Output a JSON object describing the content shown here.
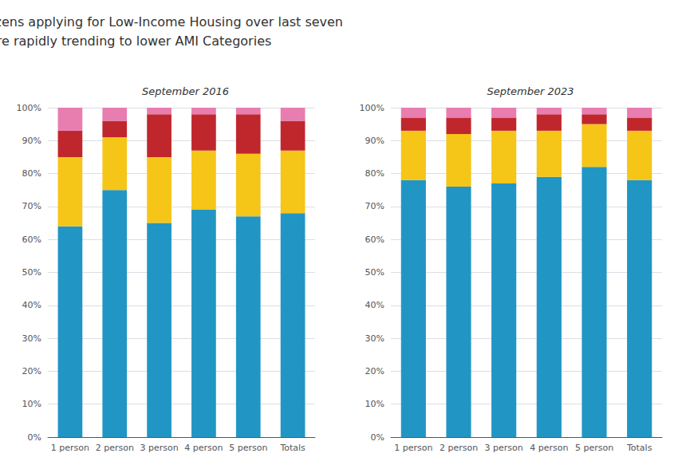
{
  "title": "E. Massachusetts citizens applying for Low-Income Housing over last seven\nyears to are rapidly trending to lower AMI Categories",
  "chart_data": [
    {
      "type": "bar",
      "title": "September 2016",
      "stacked": true,
      "grid": true,
      "categories": [
        "1 person",
        "2 person",
        "3 person",
        "4 person",
        "5 person",
        "Totals"
      ],
      "series": [
        {
          "color": "#2196C4",
          "values": [
            64,
            75,
            65,
            69,
            67,
            68
          ]
        },
        {
          "color": "#F5C518",
          "values": [
            21,
            16,
            20,
            18,
            19,
            19
          ]
        },
        {
          "color": "#C0272D",
          "values": [
            8,
            5,
            13,
            11,
            12,
            9
          ]
        },
        {
          "color": "#E87DB0",
          "values": [
            7,
            4,
            2,
            2,
            2,
            4
          ]
        }
      ],
      "ylim": [
        0,
        100
      ],
      "yticks": [
        {
          "value": 0,
          "label": "0%"
        },
        {
          "value": 10,
          "label": "10%"
        },
        {
          "value": 20,
          "label": "20%"
        },
        {
          "value": 30,
          "label": "30%"
        },
        {
          "value": 40,
          "label": "40%"
        },
        {
          "value": 50,
          "label": "50%"
        },
        {
          "value": 60,
          "label": "60%"
        },
        {
          "value": 70,
          "label": "70%"
        },
        {
          "value": 80,
          "label": "80%"
        },
        {
          "value": 90,
          "label": "90%"
        },
        {
          "value": 100,
          "label": "100%"
        }
      ]
    },
    {
      "type": "bar",
      "title": "September 2023",
      "stacked": true,
      "grid": true,
      "categories": [
        "1 person",
        "2 person",
        "3 person",
        "4 person",
        "5 person",
        "Totals"
      ],
      "series": [
        {
          "color": "#2196C4",
          "values": [
            78,
            76,
            77,
            79,
            82,
            78
          ]
        },
        {
          "color": "#F5C518",
          "values": [
            15,
            16,
            16,
            14,
            13,
            15
          ]
        },
        {
          "color": "#C0272D",
          "values": [
            4,
            5,
            4,
            5,
            3,
            4
          ]
        },
        {
          "color": "#E87DB0",
          "values": [
            3,
            3,
            3,
            2,
            2,
            3
          ]
        }
      ],
      "ylim": [
        0,
        100
      ],
      "yticks": [
        {
          "value": 0,
          "label": "0%"
        },
        {
          "value": 10,
          "label": "10%"
        },
        {
          "value": 20,
          "label": "20%"
        },
        {
          "value": 30,
          "label": "30%"
        },
        {
          "value": 40,
          "label": "40%"
        },
        {
          "value": 50,
          "label": "50%"
        },
        {
          "value": 60,
          "label": "60%"
        },
        {
          "value": 70,
          "label": "70%"
        },
        {
          "value": 80,
          "label": "80%"
        },
        {
          "value": 90,
          "label": "90%"
        },
        {
          "value": 100,
          "label": "100%"
        }
      ]
    }
  ]
}
